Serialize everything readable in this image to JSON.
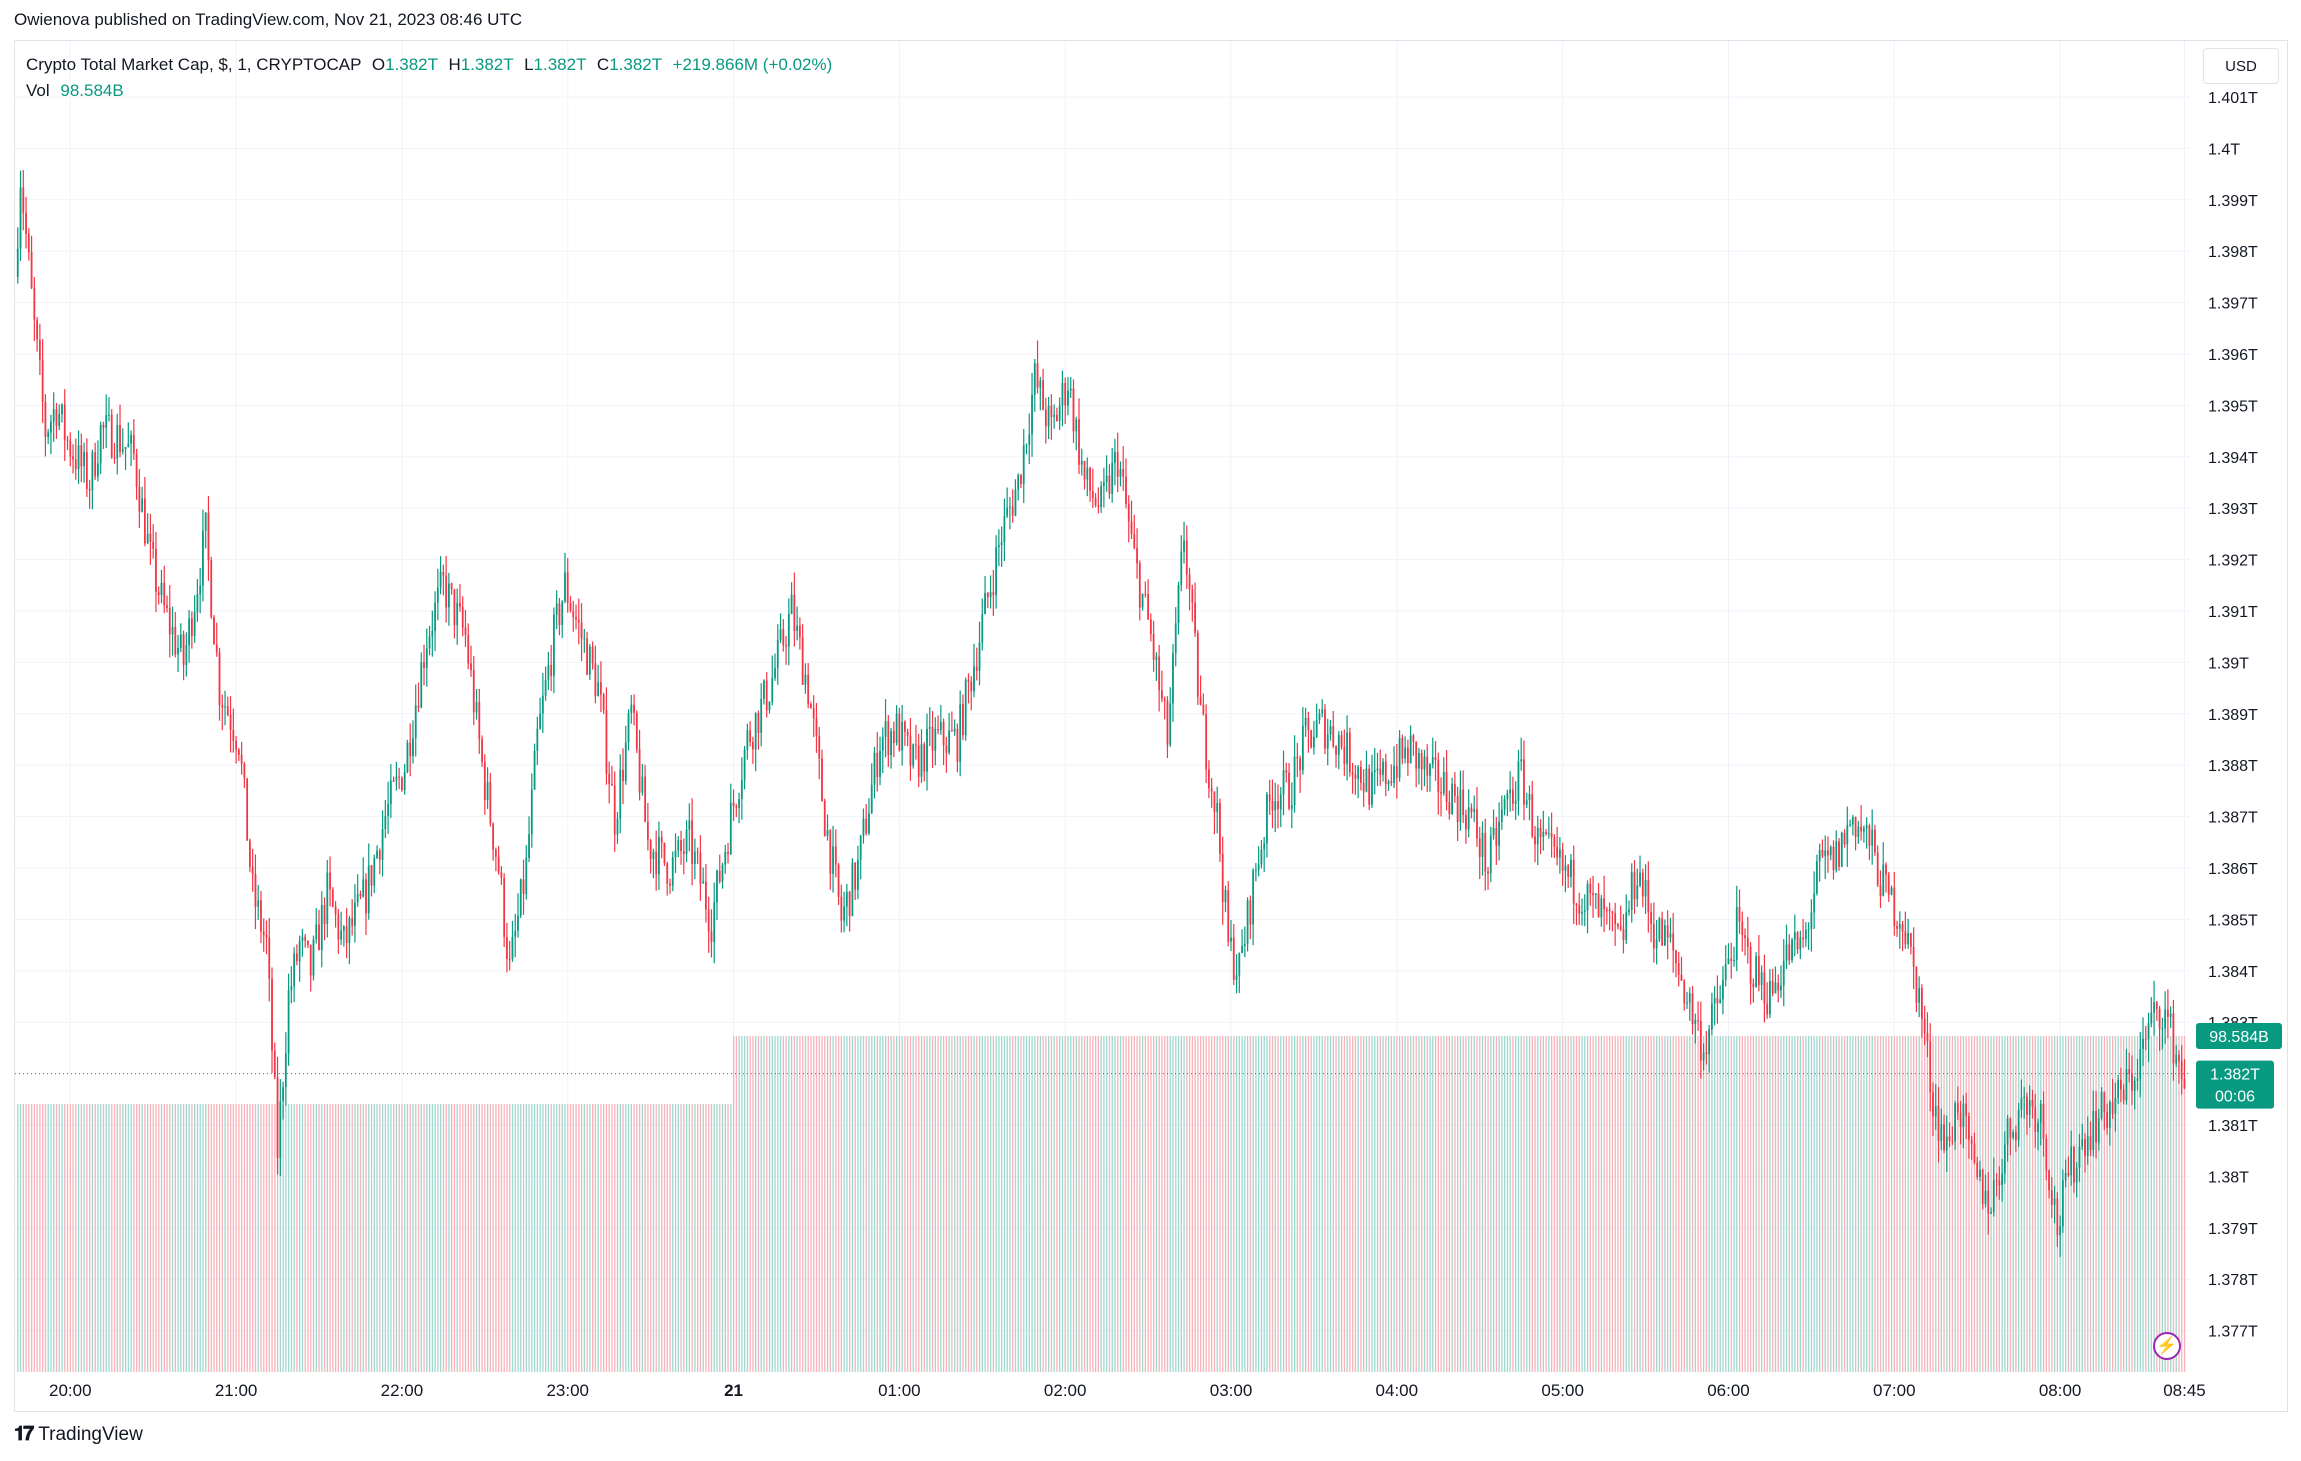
{
  "publisher_line": "Owienova published on TradingView.com, Nov 21, 2023 08:46 UTC",
  "legend": {
    "symbol": "Crypto Total Market Cap, $, 1, CRYPTOCAP",
    "o_label": "O",
    "o_value": "1.382T",
    "h_label": "H",
    "h_value": "1.382T",
    "l_label": "L",
    "l_value": "1.382T",
    "c_label": "C",
    "c_value": "1.382T",
    "change": "+219.866M (+0.02%)",
    "vol_label": "Vol",
    "vol_value": "98.584B"
  },
  "currency": "USD",
  "price_badge": {
    "value": "1.382T",
    "countdown": "00:06"
  },
  "vol_badge": "98.584B",
  "footer_brand": "TradingView",
  "colors": {
    "up": "#089981",
    "down": "#f23645",
    "up_vol": "#9fd8cf",
    "down_vol": "#f7b3b9",
    "grid": "#f0f3fa",
    "accent": "#9c27b0"
  },
  "chart_data": {
    "type": "candlestick",
    "title": "Crypto Total Market Cap, $, 1, CRYPTOCAP",
    "ylabel": "USD",
    "ylim": [
      1.3765,
      1.4015
    ],
    "y_ticks": [
      1.401,
      1.4,
      1.399,
      1.398,
      1.397,
      1.396,
      1.395,
      1.394,
      1.393,
      1.392,
      1.391,
      1.39,
      1.389,
      1.388,
      1.387,
      1.386,
      1.385,
      1.384,
      1.383,
      1.382,
      1.381,
      1.38,
      1.379,
      1.378,
      1.377
    ],
    "y_tick_labels": [
      "1.401T",
      "1.4T",
      "1.399T",
      "1.398T",
      "1.397T",
      "1.396T",
      "1.395T",
      "1.394T",
      "1.393T",
      "1.392T",
      "1.391T",
      "1.39T",
      "1.389T",
      "1.388T",
      "1.387T",
      "1.386T",
      "1.385T",
      "1.384T",
      "1.383T",
      "1.382T",
      "1.381T",
      "1.38T",
      "1.379T",
      "1.378T",
      "1.377T"
    ],
    "x_ticks": [
      {
        "label": "20:00",
        "t": 0
      },
      {
        "label": "21:00",
        "t": 60
      },
      {
        "label": "22:00",
        "t": 120
      },
      {
        "label": "23:00",
        "t": 180
      },
      {
        "label": "21",
        "t": 240
      },
      {
        "label": "01:00",
        "t": 300
      },
      {
        "label": "02:00",
        "t": 360
      },
      {
        "label": "03:00",
        "t": 420
      },
      {
        "label": "04:00",
        "t": 480
      },
      {
        "label": "05:00",
        "t": 540
      },
      {
        "label": "06:00",
        "t": 600
      },
      {
        "label": "07:00",
        "t": 660
      },
      {
        "label": "08:00",
        "t": 720
      },
      {
        "label": "08:45",
        "t": 765
      }
    ],
    "x_range_minutes": [
      -20,
      767
    ],
    "last_price": 1.382,
    "last_volume": "98.584B",
    "price_path": [
      [
        -19,
        1.3975
      ],
      [
        -17,
        1.3995
      ],
      [
        -12,
        1.3965
      ],
      [
        -8,
        1.3945
      ],
      [
        -4,
        1.395
      ],
      [
        0,
        1.3943
      ],
      [
        8,
        1.3935
      ],
      [
        12,
        1.3945
      ],
      [
        18,
        1.3944
      ],
      [
        24,
        1.394
      ],
      [
        30,
        1.392
      ],
      [
        35,
        1.391
      ],
      [
        42,
        1.39
      ],
      [
        50,
        1.3925
      ],
      [
        55,
        1.3895
      ],
      [
        62,
        1.3885
      ],
      [
        67,
        1.3855
      ],
      [
        72,
        1.3845
      ],
      [
        76,
        1.3805
      ],
      [
        80,
        1.3835
      ],
      [
        84,
        1.3845
      ],
      [
        88,
        1.384
      ],
      [
        94,
        1.3855
      ],
      [
        100,
        1.3845
      ],
      [
        108,
        1.3855
      ],
      [
        115,
        1.387
      ],
      [
        122,
        1.388
      ],
      [
        130,
        1.3905
      ],
      [
        136,
        1.3915
      ],
      [
        144,
        1.3905
      ],
      [
        150,
        1.388
      ],
      [
        156,
        1.386
      ],
      [
        160,
        1.384
      ],
      [
        166,
        1.386
      ],
      [
        170,
        1.3885
      ],
      [
        176,
        1.3905
      ],
      [
        180,
        1.3915
      ],
      [
        186,
        1.3905
      ],
      [
        192,
        1.3895
      ],
      [
        198,
        1.387
      ],
      [
        204,
        1.389
      ],
      [
        210,
        1.3865
      ],
      [
        218,
        1.386
      ],
      [
        225,
        1.3865
      ],
      [
        233,
        1.385
      ],
      [
        240,
        1.387
      ],
      [
        246,
        1.3885
      ],
      [
        254,
        1.3895
      ],
      [
        262,
        1.391
      ],
      [
        268,
        1.3895
      ],
      [
        274,
        1.387
      ],
      [
        280,
        1.385
      ],
      [
        286,
        1.386
      ],
      [
        294,
        1.3885
      ],
      [
        300,
        1.3887
      ],
      [
        306,
        1.388
      ],
      [
        314,
        1.3885
      ],
      [
        322,
        1.3885
      ],
      [
        330,
        1.3905
      ],
      [
        338,
        1.3925
      ],
      [
        344,
        1.3935
      ],
      [
        350,
        1.3955
      ],
      [
        356,
        1.3945
      ],
      [
        362,
        1.3955
      ],
      [
        368,
        1.3935
      ],
      [
        374,
        1.393
      ],
      [
        380,
        1.394
      ],
      [
        386,
        1.392
      ],
      [
        392,
        1.3905
      ],
      [
        398,
        1.3885
      ],
      [
        404,
        1.3925
      ],
      [
        410,
        1.389
      ],
      [
        416,
        1.387
      ],
      [
        420,
        1.3845
      ],
      [
        424,
        1.384
      ],
      [
        430,
        1.386
      ],
      [
        436,
        1.3875
      ],
      [
        442,
        1.3875
      ],
      [
        448,
        1.3885
      ],
      [
        454,
        1.3888
      ],
      [
        460,
        1.3885
      ],
      [
        466,
        1.388
      ],
      [
        472,
        1.3875
      ],
      [
        480,
        1.388
      ],
      [
        486,
        1.3883
      ],
      [
        492,
        1.3878
      ],
      [
        500,
        1.3875
      ],
      [
        508,
        1.387
      ],
      [
        514,
        1.386
      ],
      [
        520,
        1.3872
      ],
      [
        526,
        1.3878
      ],
      [
        532,
        1.3865
      ],
      [
        540,
        1.386
      ],
      [
        548,
        1.3855
      ],
      [
        556,
        1.385
      ],
      [
        562,
        1.3845
      ],
      [
        568,
        1.386
      ],
      [
        574,
        1.3848
      ],
      [
        580,
        1.3845
      ],
      [
        586,
        1.3835
      ],
      [
        592,
        1.3825
      ],
      [
        598,
        1.3835
      ],
      [
        604,
        1.3848
      ],
      [
        610,
        1.384
      ],
      [
        616,
        1.3835
      ],
      [
        622,
        1.3843
      ],
      [
        628,
        1.3845
      ],
      [
        634,
        1.386
      ],
      [
        640,
        1.3862
      ],
      [
        646,
        1.387
      ],
      [
        652,
        1.3865
      ],
      [
        658,
        1.3855
      ],
      [
        664,
        1.385
      ],
      [
        670,
        1.3835
      ],
      [
        675,
        1.3815
      ],
      [
        680,
        1.3805
      ],
      [
        684,
        1.3815
      ],
      [
        690,
        1.38
      ],
      [
        696,
        1.3795
      ],
      [
        702,
        1.3808
      ],
      [
        708,
        1.3815
      ],
      [
        714,
        1.3812
      ],
      [
        720,
        1.379
      ],
      [
        724,
        1.38
      ],
      [
        730,
        1.3808
      ],
      [
        736,
        1.3812
      ],
      [
        742,
        1.3815
      ],
      [
        748,
        1.382
      ],
      [
        754,
        1.383
      ],
      [
        758,
        1.3833
      ],
      [
        762,
        1.3826
      ],
      [
        765,
        1.382
      ]
    ]
  }
}
